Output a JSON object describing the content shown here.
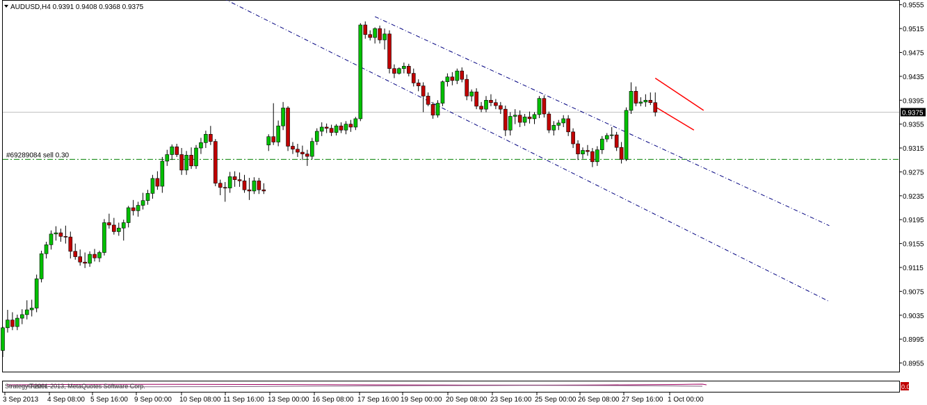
{
  "window": {
    "symbol_header": "AUDUSD,H4  0.9391 0.9408 0.9368 0.9375",
    "order_line_label": "#69289084 sell 0.30",
    "current_price_label": "0.9375",
    "subwindow_text": "Strategy Tester",
    "copyright_text": "© 2001-2013, MetaQuotes Software Corp.",
    "subwindow_value": "0.00"
  },
  "colors": {
    "bull_candle": "#00c000",
    "bear_candle": "#c00000",
    "channel_line": "#000080",
    "order_line": "#008000",
    "bid_line": "#c0c0c0",
    "pattern_line": "#ff0000"
  },
  "chart_data": {
    "type": "candlestick",
    "title": "AUDUSD,H4",
    "header_ohlc": {
      "open": 0.9391,
      "high": 0.9408,
      "low": 0.9368,
      "close": 0.9375
    },
    "ylim": [
      0.893,
      0.956
    ],
    "yticks": [
      "0.9555",
      "0.9515",
      "0.9475",
      "0.9435",
      "0.9395",
      "0.9355",
      "0.9315",
      "0.9275",
      "0.9235",
      "0.9195",
      "0.9155",
      "0.9115",
      "0.9075",
      "0.9035",
      "0.8995",
      "0.8955"
    ],
    "xticks": [
      "3 Sep 2013",
      "4 Sep 08:00",
      "5 Sep 16:00",
      "9 Sep 00:00",
      "10 Sep 08:00",
      "11 Sep 16:00",
      "13 Sep 00:00",
      "16 Sep 08:00",
      "17 Sep 16:00",
      "19 Sep 00:00",
      "20 Sep 08:00",
      "23 Sep 16:00",
      "25 Sep 00:00",
      "26 Sep 08:00",
      "27 Sep 16:00",
      "1 Oct 00:00"
    ],
    "current_price": 0.9375,
    "order_line": {
      "price": 0.9296,
      "label": "#69289084 sell 0.30"
    },
    "grid": false,
    "candles": [
      {
        "o": 0.8976,
        "h": 0.9016,
        "l": 0.8965,
        "c": 0.9014
      },
      {
        "o": 0.9014,
        "h": 0.9044,
        "l": 0.9006,
        "c": 0.9027
      },
      {
        "o": 0.9027,
        "h": 0.904,
        "l": 0.901,
        "c": 0.9016
      },
      {
        "o": 0.9016,
        "h": 0.9036,
        "l": 0.901,
        "c": 0.903
      },
      {
        "o": 0.903,
        "h": 0.9045,
        "l": 0.902,
        "c": 0.9036
      },
      {
        "o": 0.9036,
        "h": 0.906,
        "l": 0.9028,
        "c": 0.9044
      },
      {
        "o": 0.9044,
        "h": 0.9061,
        "l": 0.9033,
        "c": 0.9047
      },
      {
        "o": 0.9047,
        "h": 0.9103,
        "l": 0.904,
        "c": 0.9096
      },
      {
        "o": 0.9096,
        "h": 0.9143,
        "l": 0.909,
        "c": 0.9138
      },
      {
        "o": 0.9138,
        "h": 0.9158,
        "l": 0.913,
        "c": 0.9153
      },
      {
        "o": 0.9153,
        "h": 0.9177,
        "l": 0.9145,
        "c": 0.9171
      },
      {
        "o": 0.9171,
        "h": 0.9184,
        "l": 0.916,
        "c": 0.9173
      },
      {
        "o": 0.9173,
        "h": 0.918,
        "l": 0.9158,
        "c": 0.9167
      },
      {
        "o": 0.9167,
        "h": 0.9185,
        "l": 0.9155,
        "c": 0.9166
      },
      {
        "o": 0.9166,
        "h": 0.9175,
        "l": 0.913,
        "c": 0.9142
      },
      {
        "o": 0.9142,
        "h": 0.9155,
        "l": 0.9128,
        "c": 0.9133
      },
      {
        "o": 0.9133,
        "h": 0.9145,
        "l": 0.9118,
        "c": 0.9124
      },
      {
        "o": 0.9124,
        "h": 0.914,
        "l": 0.9114,
        "c": 0.9122
      },
      {
        "o": 0.9122,
        "h": 0.9142,
        "l": 0.9116,
        "c": 0.9137
      },
      {
        "o": 0.9137,
        "h": 0.9146,
        "l": 0.9125,
        "c": 0.9131
      },
      {
        "o": 0.9131,
        "h": 0.9143,
        "l": 0.9124,
        "c": 0.914
      },
      {
        "o": 0.914,
        "h": 0.9196,
        "l": 0.9135,
        "c": 0.919
      },
      {
        "o": 0.919,
        "h": 0.9205,
        "l": 0.918,
        "c": 0.9186
      },
      {
        "o": 0.9186,
        "h": 0.9198,
        "l": 0.917,
        "c": 0.9175
      },
      {
        "o": 0.9175,
        "h": 0.919,
        "l": 0.9168,
        "c": 0.9181
      },
      {
        "o": 0.9181,
        "h": 0.9195,
        "l": 0.916,
        "c": 0.919
      },
      {
        "o": 0.919,
        "h": 0.9218,
        "l": 0.9182,
        "c": 0.9215
      },
      {
        "o": 0.9215,
        "h": 0.9228,
        "l": 0.9202,
        "c": 0.921
      },
      {
        "o": 0.921,
        "h": 0.9225,
        "l": 0.92,
        "c": 0.9219
      },
      {
        "o": 0.9219,
        "h": 0.924,
        "l": 0.9212,
        "c": 0.9227
      },
      {
        "o": 0.9227,
        "h": 0.9245,
        "l": 0.922,
        "c": 0.9239
      },
      {
        "o": 0.9239,
        "h": 0.927,
        "l": 0.923,
        "c": 0.9264
      },
      {
        "o": 0.9264,
        "h": 0.9276,
        "l": 0.9245,
        "c": 0.9251
      },
      {
        "o": 0.9251,
        "h": 0.93,
        "l": 0.924,
        "c": 0.9293
      },
      {
        "o": 0.9293,
        "h": 0.9312,
        "l": 0.9285,
        "c": 0.9304
      },
      {
        "o": 0.9304,
        "h": 0.9321,
        "l": 0.9295,
        "c": 0.9317
      },
      {
        "o": 0.9317,
        "h": 0.9322,
        "l": 0.93,
        "c": 0.9304
      },
      {
        "o": 0.9304,
        "h": 0.9315,
        "l": 0.927,
        "c": 0.9278
      },
      {
        "o": 0.9278,
        "h": 0.931,
        "l": 0.927,
        "c": 0.9303
      },
      {
        "o": 0.9303,
        "h": 0.9316,
        "l": 0.928,
        "c": 0.9285
      },
      {
        "o": 0.9285,
        "h": 0.932,
        "l": 0.928,
        "c": 0.9315
      },
      {
        "o": 0.9315,
        "h": 0.9332,
        "l": 0.9305,
        "c": 0.9324
      },
      {
        "o": 0.9324,
        "h": 0.9344,
        "l": 0.9315,
        "c": 0.9338
      },
      {
        "o": 0.9338,
        "h": 0.9352,
        "l": 0.932,
        "c": 0.9326
      },
      {
        "o": 0.9326,
        "h": 0.933,
        "l": 0.9251,
        "c": 0.9256
      },
      {
        "o": 0.9256,
        "h": 0.9262,
        "l": 0.9236,
        "c": 0.9249
      },
      {
        "o": 0.9249,
        "h": 0.9258,
        "l": 0.9225,
        "c": 0.9248
      },
      {
        "o": 0.9248,
        "h": 0.9275,
        "l": 0.924,
        "c": 0.9267
      },
      {
        "o": 0.9267,
        "h": 0.9276,
        "l": 0.925,
        "c": 0.9262
      },
      {
        "o": 0.9262,
        "h": 0.9274,
        "l": 0.925,
        "c": 0.926
      },
      {
        "o": 0.926,
        "h": 0.927,
        "l": 0.924,
        "c": 0.9245
      },
      {
        "o": 0.9245,
        "h": 0.9265,
        "l": 0.9228,
        "c": 0.9243
      },
      {
        "o": 0.9243,
        "h": 0.9266,
        "l": 0.9238,
        "c": 0.926
      },
      {
        "o": 0.926,
        "h": 0.9265,
        "l": 0.9238,
        "c": 0.9245
      },
      {
        "o": 0.9245,
        "h": 0.9256,
        "l": 0.9238,
        "c": 0.9243
      },
      {
        "o": 0.932,
        "h": 0.9338,
        "l": 0.931,
        "c": 0.9334
      },
      {
        "o": 0.9334,
        "h": 0.939,
        "l": 0.932,
        "c": 0.9325
      },
      {
        "o": 0.9325,
        "h": 0.9361,
        "l": 0.9318,
        "c": 0.9352
      },
      {
        "o": 0.9352,
        "h": 0.9392,
        "l": 0.9345,
        "c": 0.9382
      },
      {
        "o": 0.9382,
        "h": 0.9385,
        "l": 0.931,
        "c": 0.9318
      },
      {
        "o": 0.9318,
        "h": 0.9325,
        "l": 0.9305,
        "c": 0.9313
      },
      {
        "o": 0.9313,
        "h": 0.9322,
        "l": 0.93,
        "c": 0.9308
      },
      {
        "o": 0.9308,
        "h": 0.9319,
        "l": 0.9295,
        "c": 0.9305
      },
      {
        "o": 0.9305,
        "h": 0.9312,
        "l": 0.9285,
        "c": 0.9301
      },
      {
        "o": 0.9301,
        "h": 0.9332,
        "l": 0.9296,
        "c": 0.9326
      },
      {
        "o": 0.9326,
        "h": 0.9348,
        "l": 0.932,
        "c": 0.9343
      },
      {
        "o": 0.9343,
        "h": 0.9358,
        "l": 0.9335,
        "c": 0.935
      },
      {
        "o": 0.935,
        "h": 0.9356,
        "l": 0.934,
        "c": 0.9348
      },
      {
        "o": 0.9348,
        "h": 0.9354,
        "l": 0.9335,
        "c": 0.9341
      },
      {
        "o": 0.9341,
        "h": 0.9355,
        "l": 0.9336,
        "c": 0.9352
      },
      {
        "o": 0.9352,
        "h": 0.9358,
        "l": 0.934,
        "c": 0.9345
      },
      {
        "o": 0.9345,
        "h": 0.936,
        "l": 0.9338,
        "c": 0.9355
      },
      {
        "o": 0.9355,
        "h": 0.9362,
        "l": 0.9342,
        "c": 0.935
      },
      {
        "o": 0.935,
        "h": 0.9367,
        "l": 0.9345,
        "c": 0.9364
      },
      {
        "o": 0.9364,
        "h": 0.9524,
        "l": 0.936,
        "c": 0.9521
      },
      {
        "o": 0.9521,
        "h": 0.9527,
        "l": 0.9498,
        "c": 0.9505
      },
      {
        "o": 0.9505,
        "h": 0.9512,
        "l": 0.9495,
        "c": 0.95
      },
      {
        "o": 0.95,
        "h": 0.9517,
        "l": 0.949,
        "c": 0.9515
      },
      {
        "o": 0.9515,
        "h": 0.952,
        "l": 0.949,
        "c": 0.9496
      },
      {
        "o": 0.9496,
        "h": 0.9515,
        "l": 0.948,
        "c": 0.9506
      },
      {
        "o": 0.9506,
        "h": 0.9512,
        "l": 0.944,
        "c": 0.9448
      },
      {
        "o": 0.9448,
        "h": 0.9455,
        "l": 0.9432,
        "c": 0.944
      },
      {
        "o": 0.944,
        "h": 0.945,
        "l": 0.9438,
        "c": 0.9448
      },
      {
        "o": 0.9448,
        "h": 0.9458,
        "l": 0.944,
        "c": 0.9452
      },
      {
        "o": 0.9452,
        "h": 0.9456,
        "l": 0.9435,
        "c": 0.944
      },
      {
        "o": 0.944,
        "h": 0.9448,
        "l": 0.9418,
        "c": 0.9424
      },
      {
        "o": 0.9424,
        "h": 0.943,
        "l": 0.941,
        "c": 0.9419
      },
      {
        "o": 0.9419,
        "h": 0.9425,
        "l": 0.9375,
        "c": 0.9402
      },
      {
        "o": 0.9402,
        "h": 0.9408,
        "l": 0.9385,
        "c": 0.9388
      },
      {
        "o": 0.9388,
        "h": 0.9392,
        "l": 0.9364,
        "c": 0.937
      },
      {
        "o": 0.937,
        "h": 0.9395,
        "l": 0.9366,
        "c": 0.939
      },
      {
        "o": 0.939,
        "h": 0.9428,
        "l": 0.9385,
        "c": 0.9426
      },
      {
        "o": 0.9426,
        "h": 0.944,
        "l": 0.9418,
        "c": 0.9434
      },
      {
        "o": 0.9434,
        "h": 0.9442,
        "l": 0.942,
        "c": 0.9428
      },
      {
        "o": 0.9428,
        "h": 0.9448,
        "l": 0.9422,
        "c": 0.9444
      },
      {
        "o": 0.9444,
        "h": 0.945,
        "l": 0.9425,
        "c": 0.943
      },
      {
        "o": 0.943,
        "h": 0.9438,
        "l": 0.9395,
        "c": 0.9402
      },
      {
        "o": 0.9402,
        "h": 0.9413,
        "l": 0.9393,
        "c": 0.9409
      },
      {
        "o": 0.9409,
        "h": 0.9415,
        "l": 0.938,
        "c": 0.9385
      },
      {
        "o": 0.9385,
        "h": 0.9392,
        "l": 0.9375,
        "c": 0.938
      },
      {
        "o": 0.938,
        "h": 0.9402,
        "l": 0.9375,
        "c": 0.9395
      },
      {
        "o": 0.9395,
        "h": 0.9405,
        "l": 0.9385,
        "c": 0.9391
      },
      {
        "o": 0.9391,
        "h": 0.9397,
        "l": 0.938,
        "c": 0.9386
      },
      {
        "o": 0.9386,
        "h": 0.9392,
        "l": 0.9372,
        "c": 0.938
      },
      {
        "o": 0.938,
        "h": 0.9386,
        "l": 0.9335,
        "c": 0.9345
      },
      {
        "o": 0.9345,
        "h": 0.9375,
        "l": 0.9336,
        "c": 0.9368
      },
      {
        "o": 0.9368,
        "h": 0.938,
        "l": 0.9355,
        "c": 0.937
      },
      {
        "o": 0.937,
        "h": 0.9378,
        "l": 0.935,
        "c": 0.9358
      },
      {
        "o": 0.9358,
        "h": 0.9372,
        "l": 0.9352,
        "c": 0.9367
      },
      {
        "o": 0.9367,
        "h": 0.9376,
        "l": 0.9356,
        "c": 0.9364
      },
      {
        "o": 0.9364,
        "h": 0.9375,
        "l": 0.9355,
        "c": 0.9371
      },
      {
        "o": 0.9371,
        "h": 0.9402,
        "l": 0.9365,
        "c": 0.9398
      },
      {
        "o": 0.9398,
        "h": 0.9403,
        "l": 0.9366,
        "c": 0.9372
      },
      {
        "o": 0.9372,
        "h": 0.9376,
        "l": 0.934,
        "c": 0.9345
      },
      {
        "o": 0.9345,
        "h": 0.936,
        "l": 0.9336,
        "c": 0.9353
      },
      {
        "o": 0.9353,
        "h": 0.9362,
        "l": 0.9345,
        "c": 0.9357
      },
      {
        "o": 0.9357,
        "h": 0.937,
        "l": 0.935,
        "c": 0.9364
      },
      {
        "o": 0.9364,
        "h": 0.937,
        "l": 0.9335,
        "c": 0.9342
      },
      {
        "o": 0.9342,
        "h": 0.9348,
        "l": 0.9315,
        "c": 0.9322
      },
      {
        "o": 0.9322,
        "h": 0.9328,
        "l": 0.9295,
        "c": 0.9305
      },
      {
        "o": 0.9305,
        "h": 0.9316,
        "l": 0.9297,
        "c": 0.9311
      },
      {
        "o": 0.9311,
        "h": 0.932,
        "l": 0.9302,
        "c": 0.9309
      },
      {
        "o": 0.9309,
        "h": 0.9315,
        "l": 0.9283,
        "c": 0.9292
      },
      {
        "o": 0.9292,
        "h": 0.9318,
        "l": 0.9285,
        "c": 0.9312
      },
      {
        "o": 0.9312,
        "h": 0.9335,
        "l": 0.9305,
        "c": 0.933
      },
      {
        "o": 0.933,
        "h": 0.934,
        "l": 0.9325,
        "c": 0.9336
      },
      {
        "o": 0.9336,
        "h": 0.935,
        "l": 0.933,
        "c": 0.9337
      },
      {
        "o": 0.9337,
        "h": 0.9342,
        "l": 0.931,
        "c": 0.9316
      },
      {
        "o": 0.9316,
        "h": 0.9325,
        "l": 0.9289,
        "c": 0.9296
      },
      {
        "o": 0.9296,
        "h": 0.9383,
        "l": 0.9293,
        "c": 0.9378
      },
      {
        "o": 0.9378,
        "h": 0.9425,
        "l": 0.9372,
        "c": 0.941
      },
      {
        "o": 0.941,
        "h": 0.9418,
        "l": 0.9385,
        "c": 0.939
      },
      {
        "o": 0.939,
        "h": 0.94,
        "l": 0.9385,
        "c": 0.9392
      },
      {
        "o": 0.9392,
        "h": 0.9405,
        "l": 0.9384,
        "c": 0.9395
      },
      {
        "o": 0.9395,
        "h": 0.9408,
        "l": 0.9387,
        "c": 0.9391
      },
      {
        "o": 0.9391,
        "h": 0.9408,
        "l": 0.9368,
        "c": 0.9375
      }
    ],
    "trendlines": [
      {
        "name": "channel-upper",
        "style": "dash-dot",
        "color": "#000080",
        "points": [
          {
            "i": 77,
            "p": 0.9535
          },
          {
            "i": 171,
            "p": 0.9185
          }
        ]
      },
      {
        "name": "channel-lower",
        "style": "dash-dot",
        "color": "#000080",
        "points": [
          {
            "i": 44,
            "p": 0.9572
          },
          {
            "i": 171,
            "p": 0.9058
          }
        ]
      },
      {
        "name": "pattern-upper",
        "style": "solid",
        "color": "#ff0000",
        "points": [
          {
            "i": 135,
            "p": 0.9432
          },
          {
            "i": 145,
            "p": 0.9378
          }
        ]
      },
      {
        "name": "pattern-lower",
        "style": "solid",
        "color": "#ff0000",
        "points": [
          {
            "i": 135,
            "p": 0.9384
          },
          {
            "i": 143,
            "p": 0.9345
          }
        ]
      }
    ]
  }
}
